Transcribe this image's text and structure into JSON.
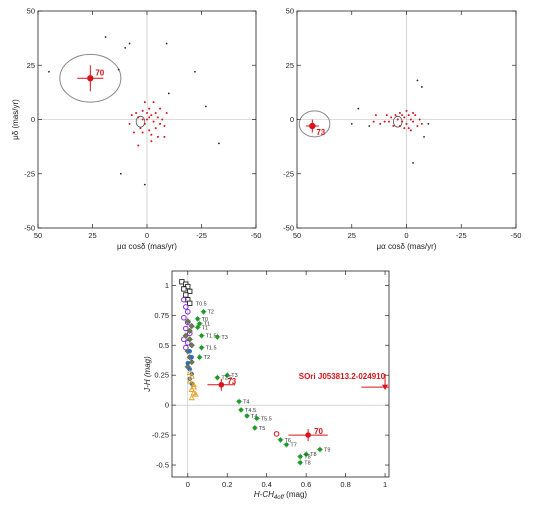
{
  "colors": {
    "red": "#d8141a",
    "black": "#222222",
    "green": "#1f9a2a",
    "ellipse": "#888888",
    "purple": "#8a2be2",
    "blue": "#2c6db5",
    "orange": "#e8a020"
  },
  "chart_data": [
    {
      "type": "scatter",
      "title": "",
      "xlabel": "μα cosδ (mas/yr)",
      "ylabel": "μδ (mas/yr)",
      "xlim": [
        50,
        -50
      ],
      "ylim": [
        -50,
        50
      ],
      "x_ticks": [
        50,
        25,
        0,
        -25,
        -50
      ],
      "y_ticks": [
        50,
        25,
        0,
        -25,
        -50
      ],
      "highlight": {
        "label": "70",
        "x": 26,
        "y": 19,
        "xerr": 6,
        "yerr": 6,
        "ellipse": {
          "cx": 26,
          "cy": 19,
          "rx": 14,
          "ry": 11
        }
      },
      "small_ellipse": {
        "cx": 3,
        "cy": -1,
        "rx": 2,
        "ry": 2.5
      },
      "black_points": [
        [
          19,
          38
        ],
        [
          10,
          33
        ],
        [
          8,
          35
        ],
        [
          -9,
          35
        ],
        [
          -10,
          12
        ],
        [
          45,
          22
        ],
        [
          12,
          -25
        ],
        [
          1,
          -30
        ],
        [
          13,
          23
        ],
        [
          -27,
          6
        ],
        [
          -33,
          -11
        ],
        [
          -22,
          22
        ]
      ],
      "red_points": [
        [
          5,
          3
        ],
        [
          4,
          1
        ],
        [
          2,
          4
        ],
        [
          1,
          -2
        ],
        [
          0,
          0
        ],
        [
          -1,
          5
        ],
        [
          -2,
          2
        ],
        [
          -3,
          -1
        ],
        [
          -4,
          3
        ],
        [
          -5,
          1
        ],
        [
          -6,
          -2
        ],
        [
          -7,
          0
        ],
        [
          -8,
          -3
        ],
        [
          3,
          -4
        ],
        [
          2,
          -6
        ],
        [
          -1,
          -5
        ],
        [
          -2,
          -7
        ],
        [
          -5,
          -8
        ],
        [
          6,
          -6
        ],
        [
          8,
          -2
        ],
        [
          7,
          2
        ],
        [
          1,
          8
        ],
        [
          -3,
          8
        ],
        [
          -2,
          -10
        ],
        [
          4,
          -12
        ],
        [
          -6,
          5
        ],
        [
          -9,
          3
        ],
        [
          -8,
          -8
        ],
        [
          0,
          3
        ],
        [
          -4,
          -4
        ],
        [
          2,
          0
        ],
        [
          -1,
          1
        ]
      ]
    },
    {
      "type": "scatter",
      "title": "",
      "xlabel": "μα cosδ (mas/yr)",
      "ylabel": "",
      "xlim": [
        50,
        -50
      ],
      "ylim": [
        -50,
        50
      ],
      "x_ticks": [
        50,
        25,
        0,
        -25,
        -50
      ],
      "y_ticks": [
        50,
        25,
        0,
        -25,
        -50
      ],
      "highlight": {
        "label": "73",
        "x": 43,
        "y": -3,
        "xerr": 3,
        "yerr": 3,
        "ellipse": {
          "cx": 42,
          "cy": -2,
          "rx": 7,
          "ry": 6
        }
      },
      "small_ellipse": {
        "cx": 4,
        "cy": -1,
        "rx": 2,
        "ry": 2.5
      },
      "black_points": [
        [
          -5,
          18
        ],
        [
          -7,
          15
        ],
        [
          22,
          5
        ],
        [
          25,
          -2
        ],
        [
          17,
          -3
        ],
        [
          -3,
          -20
        ],
        [
          -8,
          -8
        ],
        [
          -10,
          -2
        ]
      ],
      "red_points": [
        [
          5,
          2
        ],
        [
          4,
          0
        ],
        [
          3,
          3
        ],
        [
          2,
          -1
        ],
        [
          1,
          1
        ],
        [
          0,
          -2
        ],
        [
          -1,
          2
        ],
        [
          -2,
          0
        ],
        [
          -3,
          -1
        ],
        [
          -4,
          2
        ],
        [
          -5,
          -3
        ],
        [
          -6,
          0
        ],
        [
          -7,
          -2
        ],
        [
          6,
          -3
        ],
        [
          7,
          1
        ],
        [
          8,
          -1
        ],
        [
          9,
          2
        ],
        [
          10,
          -1
        ],
        [
          12,
          -2
        ],
        [
          15,
          -1
        ],
        [
          14,
          2
        ],
        [
          -2,
          -5
        ],
        [
          0,
          4
        ],
        [
          1,
          -4
        ],
        [
          3,
          -3
        ],
        [
          -1,
          -4
        ],
        [
          2,
          2
        ],
        [
          -3,
          3
        ]
      ]
    },
    {
      "type": "scatter",
      "title": "",
      "xlabel": "H-CH",
      "xlabel_sub": "4off",
      "xlabel_unit": " (mag)",
      "ylabel": "J-H (mag)",
      "xlim": [
        -0.08,
        1.02
      ],
      "ylim": [
        -0.6,
        1.12
      ],
      "x_ticks": [
        0,
        0.2,
        0.4,
        0.6,
        0.8,
        1
      ],
      "y_ticks": [
        1,
        0.75,
        0.5,
        0.25,
        0,
        -0.25,
        -0.5
      ],
      "x_tick_labels": [
        "0",
        "0.2",
        "0.4",
        "0.6",
        "0.8",
        "1"
      ],
      "y_tick_labels": [
        "1",
        "0.75",
        "0.5",
        "0.25",
        "0",
        "-0.25",
        "-0.5"
      ],
      "t_dwarfs": [
        {
          "x": 0.08,
          "y": 0.78,
          "label": "T2"
        },
        {
          "x": 0.05,
          "y": 0.72,
          "label": "T0"
        },
        {
          "x": 0.06,
          "y": 0.68,
          "label": "T1"
        },
        {
          "x": 0.05,
          "y": 0.65,
          "label": "T1"
        },
        {
          "x": 0.07,
          "y": 0.58,
          "label": "T1.5"
        },
        {
          "x": 0.15,
          "y": 0.57,
          "label": "T3"
        },
        {
          "x": 0.07,
          "y": 0.48,
          "label": "T1.5"
        },
        {
          "x": 0.06,
          "y": 0.4,
          "label": "T2"
        },
        {
          "x": 0.2,
          "y": 0.25,
          "label": "T3"
        },
        {
          "x": 0.15,
          "y": 0.23,
          "label": "T2.5"
        },
        {
          "x": 0.26,
          "y": 0.03,
          "label": "T4"
        },
        {
          "x": 0.27,
          "y": -0.04,
          "label": "T4.5"
        },
        {
          "x": 0.3,
          "y": -0.09,
          "label": "T4"
        },
        {
          "x": 0.35,
          "y": -0.11,
          "label": "T5.5"
        },
        {
          "x": 0.34,
          "y": -0.19,
          "label": "T5"
        },
        {
          "x": 0.47,
          "y": -0.29,
          "label": "T6"
        },
        {
          "x": 0.5,
          "y": -0.33,
          "label": "T7"
        },
        {
          "x": 0.67,
          "y": -0.37,
          "label": "T9"
        },
        {
          "x": 0.6,
          "y": -0.41,
          "label": "T8"
        },
        {
          "x": 0.57,
          "y": -0.43,
          "label": "T8"
        },
        {
          "x": 0.57,
          "y": -0.48,
          "label": "T8"
        }
      ],
      "l_dwarf_open": [
        [
          -0.03,
          1.03
        ],
        [
          -0.01,
          1.01
        ],
        [
          0.0,
          0.99
        ],
        [
          -0.02,
          0.97
        ],
        [
          0.01,
          0.95
        ],
        [
          -0.01,
          0.92
        ],
        [
          0.0,
          0.88
        ],
        [
          0.01,
          0.85
        ]
      ],
      "t05_label": {
        "x": 0.02,
        "y": 0.85,
        "label": "T0.5"
      },
      "purple_points": [
        [
          -0.02,
          0.88
        ],
        [
          -0.01,
          0.82
        ],
        [
          0.0,
          0.78
        ],
        [
          -0.02,
          0.73
        ],
        [
          0.0,
          0.69
        ],
        [
          -0.01,
          0.64
        ],
        [
          0.01,
          0.6
        ],
        [
          -0.02,
          0.55
        ],
        [
          0.0,
          0.52
        ],
        [
          -0.01,
          0.48
        ]
      ],
      "olive_points": [
        [
          0.0,
          0.7
        ],
        [
          0.02,
          0.66
        ],
        [
          0.01,
          0.62
        ],
        [
          -0.01,
          0.58
        ],
        [
          0.01,
          0.55
        ],
        [
          0.02,
          0.5
        ],
        [
          0.0,
          0.45
        ],
        [
          0.01,
          0.4
        ],
        [
          0.02,
          0.36
        ],
        [
          0.0,
          0.32
        ]
      ],
      "blue_points": [
        [
          0.01,
          0.45
        ],
        [
          0.02,
          0.4
        ],
        [
          0.0,
          0.35
        ],
        [
          0.01,
          0.3
        ],
        [
          0.02,
          0.26
        ],
        [
          0.01,
          0.22
        ],
        [
          0.02,
          0.18
        ]
      ],
      "orange_points": [
        [
          0.01,
          0.27
        ],
        [
          0.02,
          0.24
        ],
        [
          0.01,
          0.2
        ],
        [
          0.03,
          0.17
        ],
        [
          0.02,
          0.13
        ],
        [
          0.03,
          0.1
        ],
        [
          0.02,
          0.06
        ],
        [
          0.04,
          0.09
        ],
        [
          0.03,
          0.15
        ]
      ],
      "open_red": {
        "x": 0.45,
        "y": -0.24
      },
      "highlight_73": {
        "label": "73",
        "x": 0.17,
        "y": 0.17,
        "xerr": 0.07,
        "yerr": 0.05
      },
      "highlight_70": {
        "label": "70",
        "x": 0.61,
        "y": -0.25,
        "xerr": 0.1,
        "yerr": 0.05
      },
      "sori": {
        "label": "SOri J053813.2-024910",
        "x": 1.0,
        "y": 0.15,
        "xerr": 0.12,
        "yerr_up": 0.11
      }
    }
  ]
}
